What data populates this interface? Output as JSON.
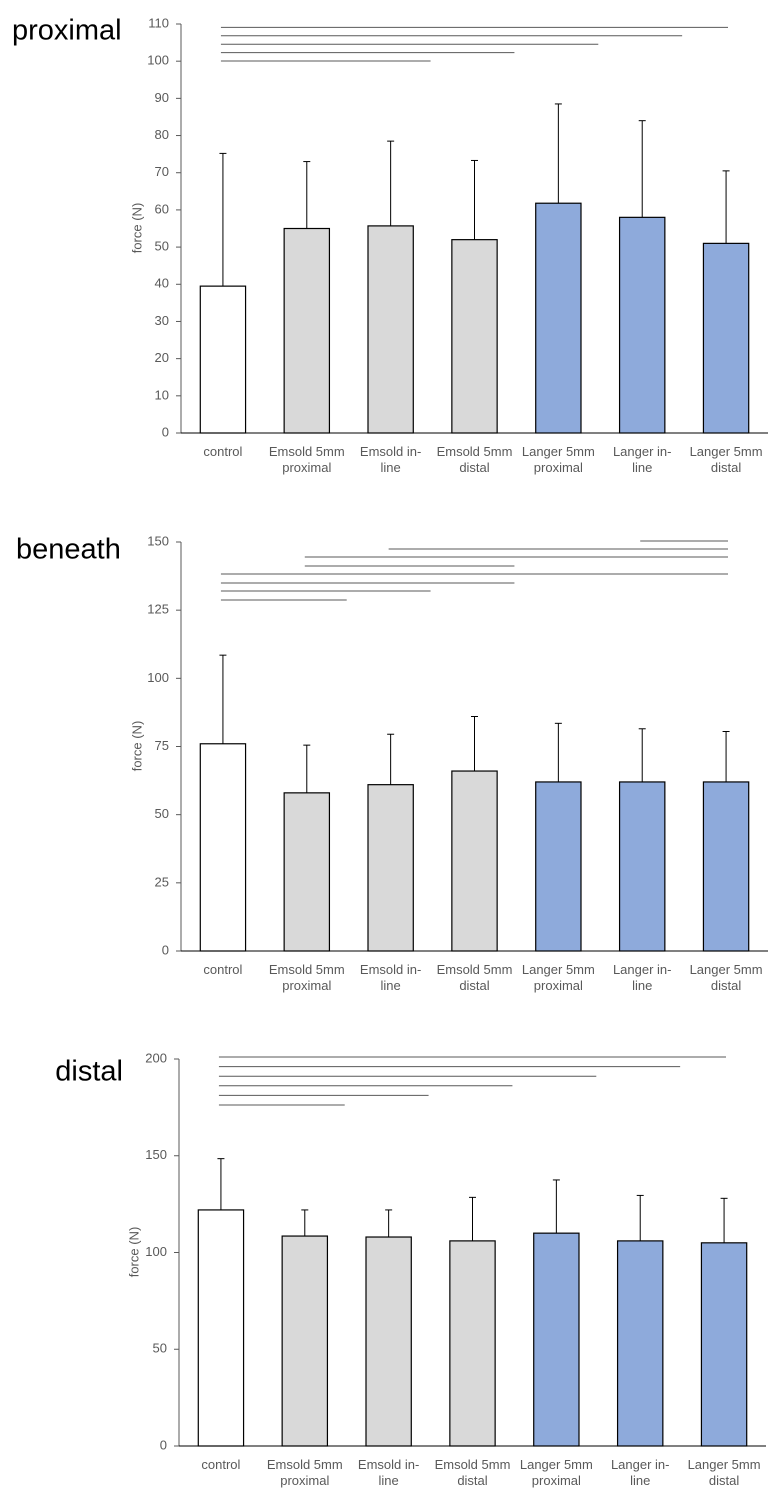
{
  "colors": {
    "control": "#ffffff",
    "emsold": "#d9d9d9",
    "langer": "#8eaadb",
    "bar_outline": "#000000",
    "bracket": "#595959",
    "text": "#595959"
  },
  "chart_data": [
    {
      "type": "bar",
      "title": "proximal",
      "ylabel": "force (N)",
      "ylim": [
        0,
        110
      ],
      "yticks": [
        0,
        10,
        20,
        30,
        40,
        50,
        60,
        70,
        80,
        90,
        100,
        110
      ],
      "categories": [
        [
          "control"
        ],
        [
          "Emsold 5mm",
          "proximal"
        ],
        [
          "Emsold in-",
          "line"
        ],
        [
          "Emsold 5mm",
          "distal"
        ],
        [
          "Langer 5mm",
          "proximal"
        ],
        [
          "Langer in-",
          "line"
        ],
        [
          "Langer 5mm",
          "distal"
        ]
      ],
      "bar_groups": [
        "control",
        "emsold",
        "emsold",
        "emsold",
        "langer",
        "langer",
        "langer"
      ],
      "values": [
        39.5,
        55,
        55.7,
        52,
        61.8,
        58,
        51
      ],
      "error_upper": [
        75.2,
        73,
        78.5,
        73.3,
        88.5,
        84,
        70.5
      ],
      "significance_brackets": [
        [
          0,
          2
        ],
        [
          0,
          3
        ],
        [
          0,
          4
        ],
        [
          0,
          5
        ],
        [
          0,
          6
        ]
      ],
      "grid": false,
      "legend": "none"
    },
    {
      "type": "bar",
      "title": "beneath",
      "ylabel": "force (N)",
      "ylim": [
        0,
        150
      ],
      "yticks": [
        0,
        25,
        50,
        75,
        100,
        125,
        150
      ],
      "categories": [
        [
          "control"
        ],
        [
          "Emsold 5mm",
          "proximal"
        ],
        [
          "Emsold in-",
          "line"
        ],
        [
          "Emsold 5mm",
          "distal"
        ],
        [
          "Langer 5mm",
          "proximal"
        ],
        [
          "Langer in-",
          "line"
        ],
        [
          "Langer 5mm",
          "distal"
        ]
      ],
      "bar_groups": [
        "control",
        "emsold",
        "emsold",
        "emsold",
        "langer",
        "langer",
        "langer"
      ],
      "values": [
        76,
        58,
        61,
        66,
        62,
        62,
        62
      ],
      "error_upper": [
        108.5,
        75.5,
        79.5,
        86,
        83.5,
        81.5,
        80.5
      ],
      "significance_brackets": [
        [
          0,
          1
        ],
        [
          0,
          2
        ],
        [
          0,
          3
        ],
        [
          0,
          6
        ],
        [
          1,
          3
        ],
        [
          1,
          6
        ],
        [
          2,
          6
        ],
        [
          5,
          6
        ]
      ],
      "grid": false,
      "legend": "none"
    },
    {
      "type": "bar",
      "title": "distal",
      "ylabel": "force (N)",
      "ylim": [
        0,
        200
      ],
      "yticks": [
        0,
        50,
        100,
        150,
        200
      ],
      "categories": [
        [
          "control"
        ],
        [
          "Emsold 5mm",
          "proximal"
        ],
        [
          "Emsold in-",
          "line"
        ],
        [
          "Emsold 5mm",
          "distal"
        ],
        [
          "Langer 5mm",
          "proximal"
        ],
        [
          "Langer in-",
          "line"
        ],
        [
          "Langer 5mm",
          "distal"
        ]
      ],
      "bar_groups": [
        "control",
        "emsold",
        "emsold",
        "emsold",
        "langer",
        "langer",
        "langer"
      ],
      "values": [
        122,
        108.5,
        108,
        106,
        110,
        106,
        105
      ],
      "error_upper": [
        148.5,
        122,
        122,
        128.5,
        137.5,
        129.5,
        128
      ],
      "significance_brackets": [
        [
          0,
          1
        ],
        [
          0,
          2
        ],
        [
          0,
          3
        ],
        [
          0,
          4
        ],
        [
          0,
          5
        ],
        [
          0,
          6
        ]
      ],
      "grid": false,
      "legend": "none"
    }
  ]
}
